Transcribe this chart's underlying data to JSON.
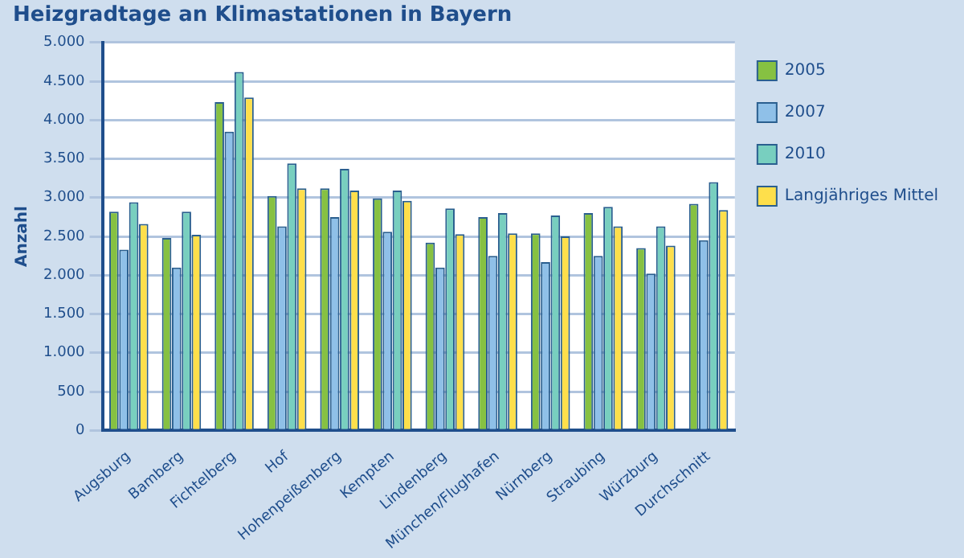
{
  "chart_data": {
    "type": "bar",
    "title": "Heizgradtage an Klimastationen in Bayern",
    "ylabel": "Anzahl",
    "categories": [
      "Augsburg",
      "Bamberg",
      "Fichtelberg",
      "Hof",
      "Hohenpeißenberg",
      "Kempten",
      "Lindenberg",
      "München/Flughafen",
      "Nürnberg",
      "Straubing",
      "Würzburg",
      "Durchschnitt"
    ],
    "series": [
      {
        "name": "2005",
        "color": "#86c142",
        "values": [
          2820,
          2480,
          4230,
          3020,
          3120,
          2990,
          2420,
          2750,
          2540,
          2800,
          2350,
          2920
        ]
      },
      {
        "name": "2007",
        "color": "#8fc0e8",
        "values": [
          2330,
          2100,
          3850,
          2630,
          2750,
          2560,
          2100,
          2250,
          2170,
          2250,
          2020,
          2450
        ]
      },
      {
        "name": "2010",
        "color": "#78cfbf",
        "values": [
          2940,
          2820,
          4620,
          3440,
          3370,
          3090,
          2860,
          2800,
          2770,
          2880,
          2630,
          3200
        ]
      },
      {
        "name": "Langjähriges Mittel",
        "color": "#fedf4b",
        "values": [
          2660,
          2520,
          4290,
          3120,
          3090,
          2960,
          2530,
          2540,
          2500,
          2630,
          2380,
          2840
        ]
      }
    ],
    "ylim": [
      0,
      5000
    ],
    "yticks": [
      {
        "value": 0,
        "label": "0"
      },
      {
        "value": 500,
        "label": "500"
      },
      {
        "value": 1000,
        "label": "1.000"
      },
      {
        "value": 1500,
        "label": "1.500"
      },
      {
        "value": 2000,
        "label": "2.000"
      },
      {
        "value": 2500,
        "label": "2.500"
      },
      {
        "value": 3000,
        "label": "3.000"
      },
      {
        "value": 3500,
        "label": "3.500"
      },
      {
        "value": 4000,
        "label": "4.000"
      },
      {
        "value": 4500,
        "label": "4.500"
      },
      {
        "value": 5000,
        "label": "5.000"
      }
    ],
    "grid": "y",
    "legend": "right"
  }
}
